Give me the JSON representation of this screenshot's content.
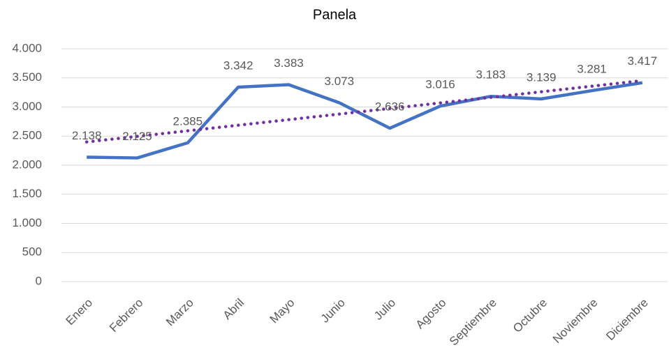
{
  "chart_data": {
    "type": "line",
    "title": "Panela",
    "categories": [
      "Enero",
      "Febrero",
      "Marzo",
      "Abril",
      "Mayo",
      "Junio",
      "Julio",
      "Agosto",
      "Septiembre",
      "Octubre",
      "Noviembre",
      "Diciembre"
    ],
    "values": [
      2138,
      2125,
      2385,
      3342,
      3383,
      3073,
      2636,
      3016,
      3183,
      3139,
      3281,
      3417
    ],
    "value_labels": [
      "2.138",
      "2.125",
      "2.385",
      "3.342",
      "3.383",
      "3.073",
      "2.636",
      "3.016",
      "3.183",
      "3.139",
      "3.281",
      "3.417"
    ],
    "color": "#4472c4",
    "trendline": {
      "type": "linear",
      "color": "#7030a0"
    },
    "ylim": [
      0,
      4000
    ],
    "yticks": [
      {
        "value": 0,
        "label": "0"
      },
      {
        "value": 500,
        "label": "500"
      },
      {
        "value": 1000,
        "label": "1.000"
      },
      {
        "value": 1500,
        "label": "1.500"
      },
      {
        "value": 2000,
        "label": "2.000"
      },
      {
        "value": 2500,
        "label": "2.500"
      },
      {
        "value": 3000,
        "label": "3.000"
      },
      {
        "value": 3500,
        "label": "3.500"
      },
      {
        "value": 4000,
        "label": "4.000"
      }
    ],
    "grid": true
  }
}
